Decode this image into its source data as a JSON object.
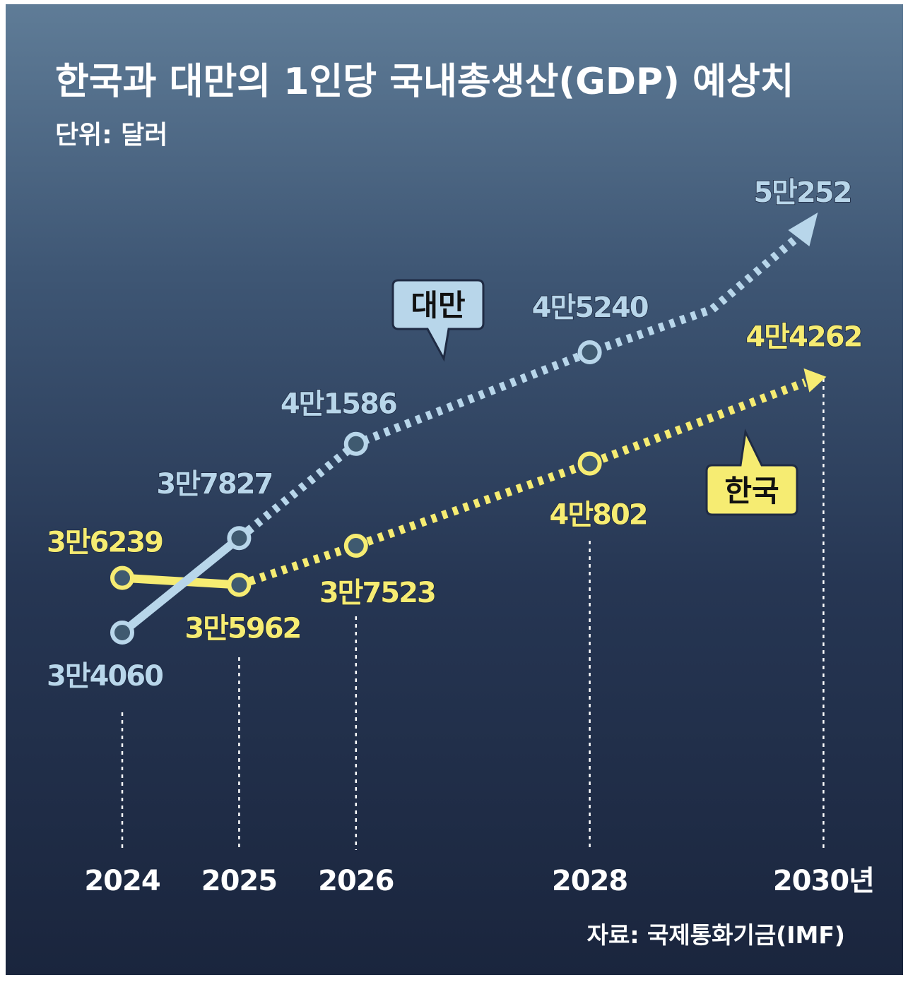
{
  "chart_data": {
    "type": "line",
    "title": "한국과 대만의 1인당 국내총생산(GDP) 예상치",
    "subtitle": "단위: 달러",
    "source": "자료: 국제통화기금(IMF)",
    "x": [
      2024,
      2025,
      2026,
      2028,
      2030
    ],
    "x_tick_labels": [
      "2024",
      "2025",
      "2026",
      "2028",
      "2030년"
    ],
    "series": [
      {
        "name": "대만",
        "values": [
          34060,
          37827,
          41586,
          45240,
          50252
        ],
        "labels": [
          "3만4060",
          "3만7827",
          "4만1586",
          "4만5240",
          "5만252"
        ],
        "color": "#b8d6ea"
      },
      {
        "name": "한국",
        "values": [
          36239,
          35962,
          37523,
          40802,
          44262
        ],
        "labels": [
          "3만6239",
          "3만5962",
          "3만7523",
          "4만802",
          "4만4262"
        ],
        "color": "#f6ec72"
      }
    ],
    "grid": false,
    "legend": "callout-bubbles"
  }
}
